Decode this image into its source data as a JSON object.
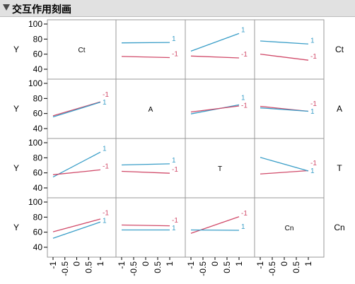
{
  "header": {
    "title": "交互作用刻画"
  },
  "chart_data": {
    "type": "line",
    "title": "交互作用刻画",
    "factors": [
      "Ct",
      "A",
      "T",
      "Cn"
    ],
    "response_label": "Y",
    "x_levels": [
      -1,
      1
    ],
    "x_tick_labels": [
      "-1",
      "-0.5",
      "0",
      "0.5",
      "1"
    ],
    "ylim": [
      40,
      100
    ],
    "y_tick_labels": [
      "40",
      "60",
      "80",
      "100"
    ],
    "trace_labels": [
      "1",
      "-1"
    ],
    "colors": {
      "high": "#3a9ec8",
      "low": "#d14b6a"
    },
    "cells": [
      {
        "row": "Ct",
        "col": "A",
        "traces": [
          {
            "level": "1",
            "y": [
              75,
              75.5
            ]
          },
          {
            "level": "-1",
            "y": [
              57,
              55.5
            ]
          }
        ]
      },
      {
        "row": "Ct",
        "col": "T",
        "traces": [
          {
            "level": "1",
            "y": [
              64,
              87.5
            ]
          },
          {
            "level": "-1",
            "y": [
              57.5,
              55
            ]
          }
        ]
      },
      {
        "row": "Ct",
        "col": "Cn",
        "traces": [
          {
            "level": "1",
            "y": [
              77.5,
              73.5
            ]
          },
          {
            "level": "-1",
            "y": [
              60,
              52
            ]
          }
        ]
      },
      {
        "row": "A",
        "col": "Ct",
        "traces": [
          {
            "level": "-1",
            "y": [
              57,
              75.5
            ]
          },
          {
            "level": "1",
            "y": [
              55.5,
              75
            ]
          }
        ]
      },
      {
        "row": "A",
        "col": "T",
        "traces": [
          {
            "level": "1",
            "y": [
              59.5,
              71.5
            ]
          },
          {
            "level": "-1",
            "y": [
              62,
              70
            ]
          }
        ]
      },
      {
        "row": "A",
        "col": "Cn",
        "traces": [
          {
            "level": "-1",
            "y": [
              69.5,
              63
            ]
          },
          {
            "level": "1",
            "y": [
              67.5,
              63
            ]
          }
        ]
      },
      {
        "row": "T",
        "col": "Ct",
        "traces": [
          {
            "level": "1",
            "y": [
              54.5,
              87.5
            ]
          },
          {
            "level": "-1",
            "y": [
              57.5,
              64
            ]
          }
        ]
      },
      {
        "row": "T",
        "col": "A",
        "traces": [
          {
            "level": "1",
            "y": [
              70.5,
              72
            ]
          },
          {
            "level": "-1",
            "y": [
              62,
              59.5
            ]
          }
        ]
      },
      {
        "row": "T",
        "col": "Cn",
        "traces": [
          {
            "level": "-1",
            "y": [
              58.5,
              63
            ]
          },
          {
            "level": "1",
            "y": [
              80.5,
              62.5
            ]
          }
        ]
      },
      {
        "row": "Cn",
        "col": "Ct",
        "traces": [
          {
            "level": "-1",
            "y": [
              60.5,
              77.5
            ]
          },
          {
            "level": "1",
            "y": [
              52,
              73.5
            ]
          }
        ]
      },
      {
        "row": "Cn",
        "col": "A",
        "traces": [
          {
            "level": "-1",
            "y": [
              69.5,
              68.5
            ]
          },
          {
            "level": "1",
            "y": [
              63,
              63
            ]
          }
        ]
      },
      {
        "row": "Cn",
        "col": "T",
        "traces": [
          {
            "level": "-1",
            "y": [
              58.5,
              80.5
            ]
          },
          {
            "level": "1",
            "y": [
              63,
              62.5
            ]
          }
        ]
      }
    ]
  }
}
